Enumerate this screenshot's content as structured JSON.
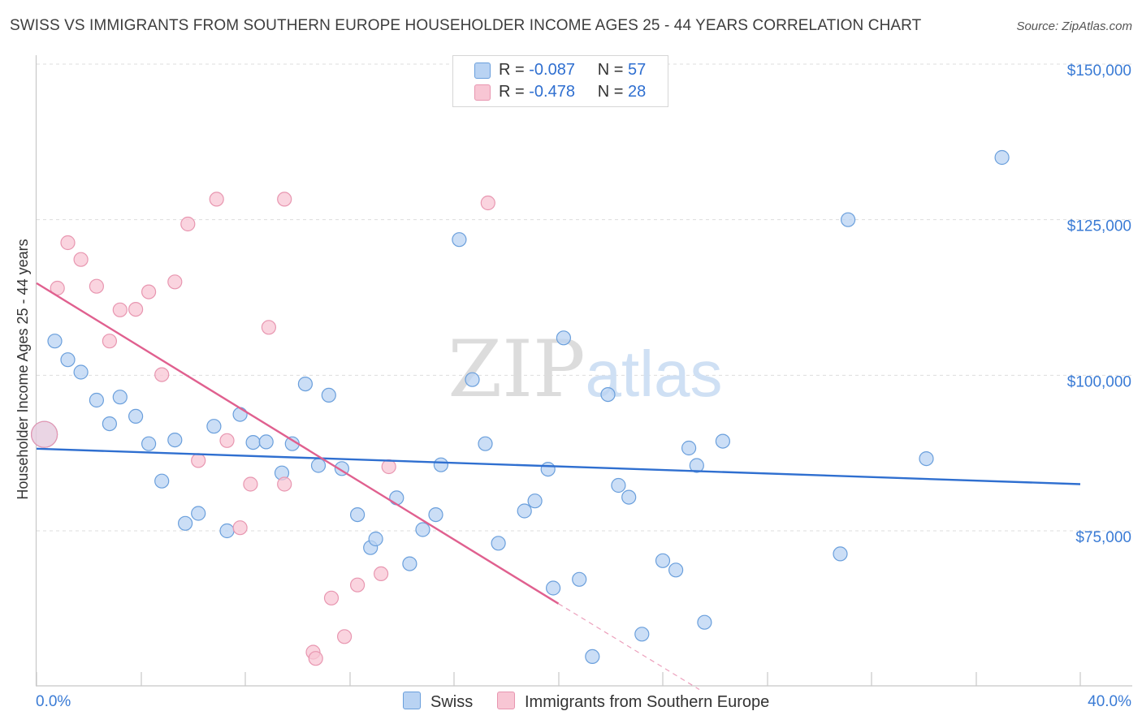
{
  "title": "SWISS VS IMMIGRANTS FROM SOUTHERN EUROPE HOUSEHOLDER INCOME AGES 25 - 44 YEARS CORRELATION CHART",
  "source": "Source: ZipAtlas.com",
  "watermark": {
    "zip": "ZIP",
    "atlas": "atlas"
  },
  "colors": {
    "swiss_fill": "#b9d3f3",
    "swiss_stroke": "#6a9fdc",
    "swiss_line": "#2f6fd0",
    "imm_fill": "#f8c6d4",
    "imm_stroke": "#e896b0",
    "imm_line": "#e0608f",
    "tick_text": "#3a7bd5",
    "grid": "#dddddd"
  },
  "legend": {
    "rows": [
      {
        "r_label": "R = ",
        "r_value": "-0.087",
        "n_label": "N = ",
        "n_value": "57"
      },
      {
        "r_label": "R = ",
        "r_value": "-0.478",
        "n_label": "N = ",
        "n_value": "28"
      }
    ]
  },
  "bottom_legend": {
    "swiss": "Swiss",
    "imm": "Immigrants from Southern Europe"
  },
  "chart_data": {
    "type": "scatter",
    "xlabel": "",
    "ylabel": "Householder Income Ages 25 - 44 years",
    "xlim": [
      0,
      40
    ],
    "ylim": [
      52000,
      153000
    ],
    "x_tick_labels": [
      "0.0%",
      "40.0%"
    ],
    "y_ticks": [
      75000,
      100000,
      125000,
      150000
    ],
    "y_tick_labels": [
      "$75,000",
      "$100,000",
      "$125,000",
      "$150,000"
    ],
    "series": [
      {
        "name": "Swiss",
        "r": -0.087,
        "n": 57,
        "trend": {
          "x0": 0,
          "y0": 88200,
          "x1": 40,
          "y1": 82500
        },
        "points": [
          [
            0.3,
            90500
          ],
          [
            0.7,
            105500
          ],
          [
            1.2,
            102500
          ],
          [
            1.7,
            100500
          ],
          [
            2.3,
            96000
          ],
          [
            2.8,
            92200
          ],
          [
            3.2,
            96500
          ],
          [
            3.8,
            93400
          ],
          [
            4.3,
            89000
          ],
          [
            4.8,
            83000
          ],
          [
            5.3,
            89600
          ],
          [
            5.7,
            76200
          ],
          [
            6.2,
            77800
          ],
          [
            6.8,
            91800
          ],
          [
            7.3,
            75000
          ],
          [
            7.8,
            93700
          ],
          [
            8.3,
            89200
          ],
          [
            8.8,
            89300
          ],
          [
            9.4,
            84300
          ],
          [
            9.8,
            89000
          ],
          [
            10.3,
            98600
          ],
          [
            10.8,
            85500
          ],
          [
            11.2,
            96800
          ],
          [
            11.7,
            85000
          ],
          [
            12.3,
            77600
          ],
          [
            12.8,
            72300
          ],
          [
            13.0,
            73700
          ],
          [
            13.8,
            80300
          ],
          [
            14.3,
            69700
          ],
          [
            14.8,
            75200
          ],
          [
            15.3,
            77600
          ],
          [
            15.5,
            85600
          ],
          [
            16.2,
            121800
          ],
          [
            16.7,
            99300
          ],
          [
            17.2,
            89000
          ],
          [
            17.7,
            73000
          ],
          [
            18.7,
            78200
          ],
          [
            19.1,
            79800
          ],
          [
            19.6,
            84900
          ],
          [
            19.8,
            65800
          ],
          [
            20.2,
            106000
          ],
          [
            20.8,
            67200
          ],
          [
            21.3,
            54800
          ],
          [
            21.9,
            96900
          ],
          [
            22.3,
            82300
          ],
          [
            22.7,
            80400
          ],
          [
            23.2,
            58400
          ],
          [
            24.0,
            70200
          ],
          [
            24.5,
            68700
          ],
          [
            25.0,
            88300
          ],
          [
            25.3,
            85500
          ],
          [
            25.6,
            60300
          ],
          [
            26.3,
            89400
          ],
          [
            30.8,
            71300
          ],
          [
            31.1,
            125000
          ],
          [
            34.1,
            86600
          ],
          [
            37.0,
            135000
          ]
        ]
      },
      {
        "name": "Immigrants from Southern Europe",
        "r": -0.478,
        "n": 28,
        "trend": {
          "x0": 0,
          "y0": 114800,
          "x1": 20.0,
          "y1": 63300
        },
        "trend_dashed": {
          "x0": 20.0,
          "y0": 63300,
          "x1": 25.4,
          "y1": 49500
        },
        "points": [
          [
            0.3,
            90500
          ],
          [
            0.8,
            114000
          ],
          [
            1.2,
            121300
          ],
          [
            1.7,
            118600
          ],
          [
            2.3,
            114300
          ],
          [
            2.8,
            105500
          ],
          [
            3.2,
            110500
          ],
          [
            3.8,
            110600
          ],
          [
            4.3,
            113400
          ],
          [
            4.8,
            100100
          ],
          [
            5.3,
            115000
          ],
          [
            5.8,
            124300
          ],
          [
            6.2,
            86300
          ],
          [
            6.9,
            128300
          ],
          [
            7.3,
            89500
          ],
          [
            7.8,
            75500
          ],
          [
            8.2,
            82500
          ],
          [
            8.9,
            107700
          ],
          [
            9.5,
            82500
          ],
          [
            9.5,
            128300
          ],
          [
            10.6,
            55500
          ],
          [
            10.7,
            54500
          ],
          [
            11.3,
            64200
          ],
          [
            11.8,
            58000
          ],
          [
            12.3,
            66300
          ],
          [
            13.2,
            68100
          ],
          [
            13.5,
            85300
          ],
          [
            17.3,
            127700
          ]
        ]
      }
    ]
  }
}
